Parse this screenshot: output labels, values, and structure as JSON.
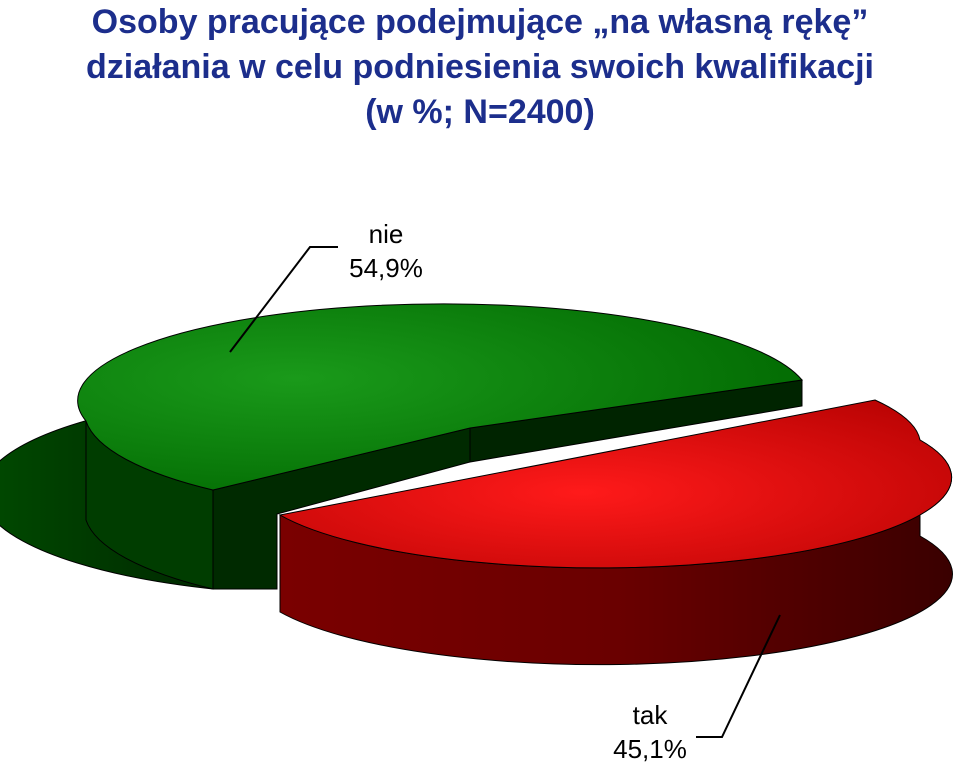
{
  "chart_data": {
    "type": "pie",
    "title_lines": [
      "Osoby pracujące podejmujące „na własną rękę”",
      "działania w celu podniesienia swoich kwalifikacji",
      "(w %; N=2400)"
    ],
    "slices": [
      {
        "label": "nie",
        "value": 54.9,
        "value_text": "54,9%",
        "color": "#008000",
        "side_color": "#003800"
      },
      {
        "label": "tak",
        "value": 45.1,
        "value_text": "45,1%",
        "color": "#ff0000",
        "side_color": "#6e0000"
      }
    ],
    "style": "3d-exploded"
  }
}
